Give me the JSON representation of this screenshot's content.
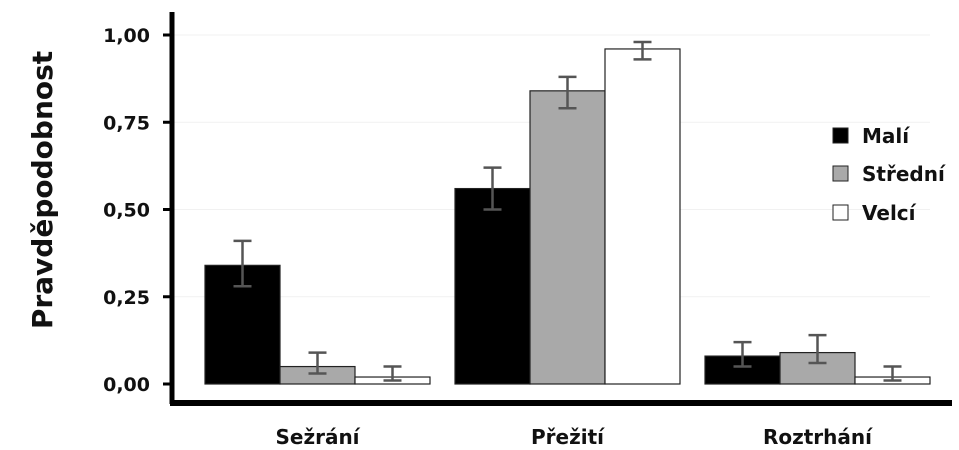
{
  "chart_data": {
    "type": "bar",
    "ylabel": "Pravděpodobnost",
    "categories": [
      "Sežrání",
      "Přežití",
      "Roztrhání"
    ],
    "ylim": [
      0,
      1
    ],
    "yticks": [
      0,
      0.25,
      0.5,
      0.75,
      1.0
    ],
    "ytick_labels": [
      "0,00",
      "0,25",
      "0,50",
      "0,75",
      "1,00"
    ],
    "legend_position": "right",
    "series": [
      {
        "name": "Malí",
        "color": "#000000",
        "values": [
          0.34,
          0.56,
          0.08
        ],
        "err_low": [
          0.28,
          0.5,
          0.05
        ],
        "err_high": [
          0.41,
          0.62,
          0.12
        ]
      },
      {
        "name": "Střední",
        "color": "#a9a9a9",
        "values": [
          0.05,
          0.84,
          0.09
        ],
        "err_low": [
          0.03,
          0.79,
          0.06
        ],
        "err_high": [
          0.09,
          0.88,
          0.14
        ]
      },
      {
        "name": "Velcí",
        "color": "#ffffff",
        "values": [
          0.02,
          0.96,
          0.02
        ],
        "err_low": [
          0.01,
          0.93,
          0.01
        ],
        "err_high": [
          0.05,
          0.98,
          0.05
        ]
      }
    ]
  }
}
